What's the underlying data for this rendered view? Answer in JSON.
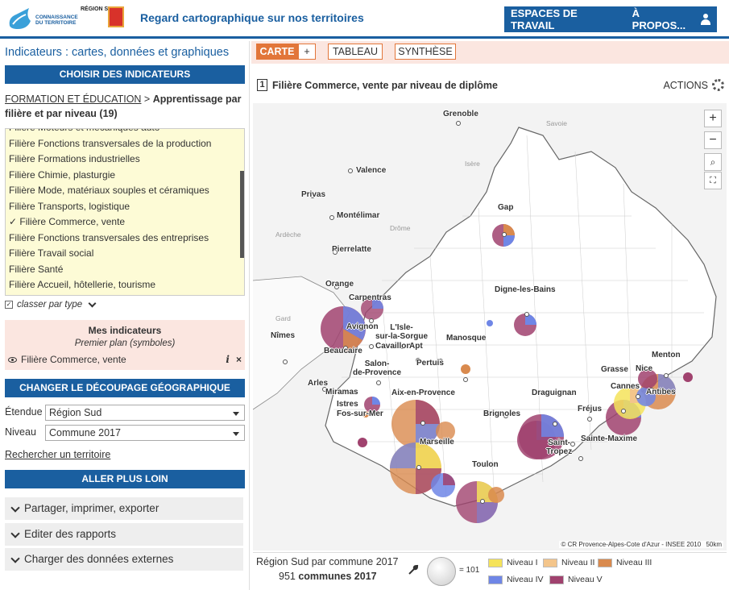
{
  "header": {
    "logo1_text": "CONNAISSANCE DU TERRITOIRE",
    "logo2_text": "RÉGION SUD",
    "title": "Regard cartographique sur nos territoires",
    "nav": [
      "ESPACES DE TRAVAIL",
      "À PROPOS..."
    ]
  },
  "left": {
    "panel_title": "Indicateurs : cartes, données et graphiques",
    "choose_bar": "CHOISIR DES INDICATEURS",
    "crumb_link": "FORMATION ET ÉDUCATION",
    "crumb_sep": " > ",
    "crumb_current": "Apprentissage par filière et par niveau (19)",
    "list_items": [
      "Filière Moteurs et mécaniques auto",
      "Filière Fonctions transversales de la production",
      "Filière Formations industrielles",
      "Filière Chimie, plasturgie",
      "Filière Mode, matériaux souples et céramiques",
      "Filière Transports, logistique",
      "✓ Filière Commerce, vente",
      "Filière Fonctions transversales des entreprises",
      "Filière Travail social",
      "Filière Santé",
      "Filière Accueil, hôtellerie, tourisme"
    ],
    "classer": "classer par type",
    "mes_title": "Mes indicateurs",
    "mes_sub": "Premier plan (symboles)",
    "mes_item": "Filière Commerce, vente",
    "decoupage_bar": "CHANGER LE DÉCOUPAGE GÉOGRAPHIQUE",
    "etendue_label": "Étendue",
    "etendue_value": "Région Sud",
    "niveau_label": "Niveau",
    "niveau_value": "Commune 2017",
    "rechercher": "Rechercher un territoire",
    "aller_bar": "ALLER PLUS LOIN",
    "accordions": [
      "Partager, imprimer, exporter",
      "Editer des rapports",
      "Charger des données externes"
    ]
  },
  "tabs": {
    "carte": "CARTE",
    "plus": "+",
    "tableau": "TABLEAU",
    "synthese": "SYNTHÈSE"
  },
  "map_header": {
    "num": "1",
    "title": "Filière Commerce, vente par niveau de diplôme",
    "actions": "ACTIONS"
  },
  "map": {
    "labels": [
      "Grenoble",
      "Valence",
      "Privas",
      "Montélimar",
      "Pierrelatte",
      "Orange",
      "Carpentras",
      "Avignon",
      "L'Isle-sur-la-Sorgue",
      "Cavaillon",
      "Apt",
      "Beaucaire",
      "Nîmes",
      "Arles",
      "Salon-de-Provence",
      "Pertuis",
      "Manosque",
      "Gap",
      "Digne-les-Bains",
      "Aix-en-Provence",
      "Marseille",
      "Miramas",
      "Istres",
      "Fos-sur-Mer",
      "Brignoles",
      "Draguignan",
      "Fréjus",
      "Saint-Tropez",
      "Sainte-Maxime",
      "Toulon",
      "Grasse",
      "Cannes",
      "Antibes",
      "Nice",
      "Menton"
    ],
    "light_labels": [
      "Savoie",
      "Isère",
      "Ardèche",
      "Drôme",
      "Gard"
    ],
    "credit": "© CR Provence-Alpes-Cote d'Azur - INSEE 2010",
    "scale": "50km"
  },
  "legend": {
    "line1": "Région Sud par commune 2017",
    "count": "951",
    "count_suffix": "communes 2017",
    "bubble_value": "= 101",
    "levels": [
      {
        "name": "Niveau I",
        "color": "#f5e35a"
      },
      {
        "name": "Niveau II",
        "color": "#f3c58b"
      },
      {
        "name": "Niveau III",
        "color": "#d98a4e"
      },
      {
        "name": "Niveau IV",
        "color": "#6f86e6"
      },
      {
        "name": "Niveau V",
        "color": "#a0426e"
      }
    ]
  }
}
